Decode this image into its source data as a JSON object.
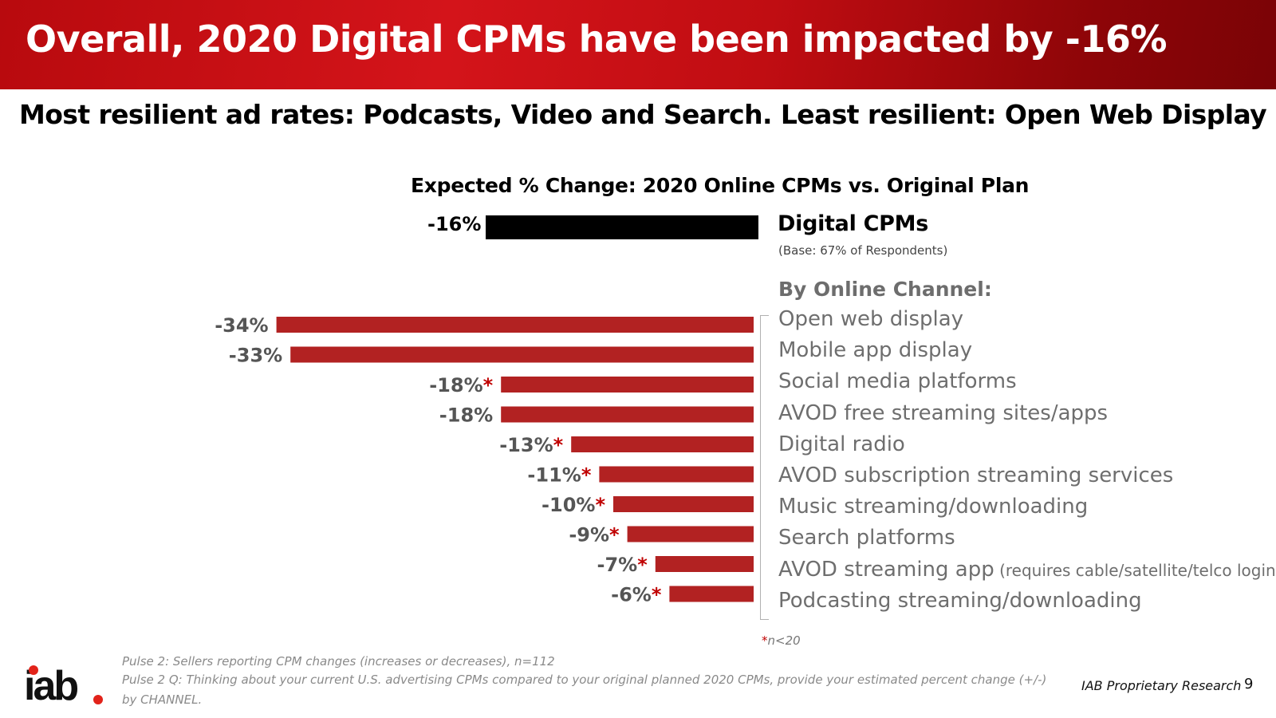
{
  "header": {
    "title": "Overall, 2020 Digital CPMs have been impacted by -16%",
    "subtitle": "Most resilient ad rates: Podcasts, Video and Search.  Least resilient: Open Web Display"
  },
  "chart_data": {
    "type": "bar",
    "orientation": "horizontal",
    "title": "Expected % Change: 2020 Online CPMs vs. Original Plan",
    "overall": {
      "label": "-16%",
      "value": -16,
      "name": "Digital CPMs",
      "base_note": "(Base:  67% of Respondents)",
      "color": "#000000"
    },
    "section_heading": "By Online Channel:",
    "bar_color": "#b22222",
    "star_color": "#c00000",
    "categories": [
      {
        "name": "Open web display",
        "value": -34,
        "label": "-34%",
        "small_n": false,
        "note": ""
      },
      {
        "name": "Mobile app display",
        "value": -33,
        "label": "-33%",
        "small_n": false,
        "note": ""
      },
      {
        "name": "Social media platforms",
        "value": -18,
        "label": "-18%",
        "small_n": true,
        "note": ""
      },
      {
        "name": "AVOD free streaming sites/apps",
        "value": -18,
        "label": "-18%",
        "small_n": false,
        "note": ""
      },
      {
        "name": "Digital radio",
        "value": -13,
        "label": "-13%",
        "small_n": true,
        "note": ""
      },
      {
        "name": "AVOD subscription streaming services",
        "value": -11,
        "label": "-11%",
        "small_n": true,
        "note": ""
      },
      {
        "name": "Music streaming/downloading",
        "value": -10,
        "label": "-10%",
        "small_n": true,
        "note": ""
      },
      {
        "name": "Search platforms",
        "value": -9,
        "label": "-9%",
        "small_n": true,
        "note": ""
      },
      {
        "name": "AVOD streaming app",
        "value": -7,
        "label": "-7%",
        "small_n": true,
        "note": "(requires cable/satellite/telco login)"
      },
      {
        "name": "Podcasting streaming/downloading",
        "value": -6,
        "label": "-6%",
        "small_n": true,
        "note": ""
      }
    ],
    "small_n_note": {
      "star": "*",
      "text": "n<20"
    }
  },
  "footer": {
    "logo_text": "iab",
    "source_lines": [
      "Pulse 2: Sellers reporting CPM changes (increases or decreases), n=112",
      "Pulse 2 Q: Thinking about your current U.S. advertising CPMs compared to your original planned 2020 CPMs, provide your estimated percent change (+/-)",
      "by CHANNEL."
    ],
    "research_label": "IAB Proprietary Research",
    "page_number": "9"
  }
}
